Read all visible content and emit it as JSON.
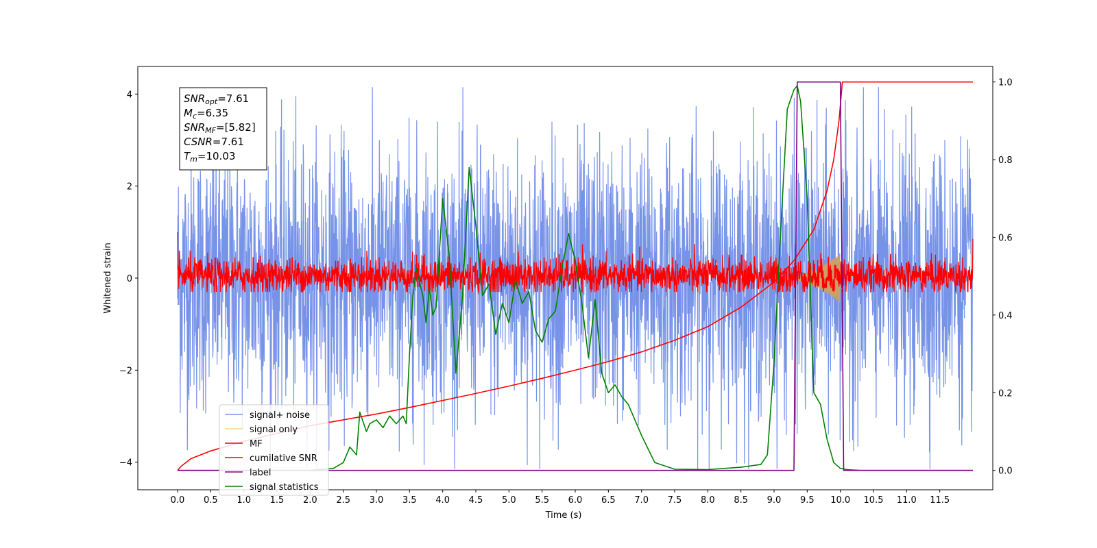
{
  "chart_data": {
    "type": "line",
    "title": "",
    "xlabel": "Time (s)",
    "ylabel": "Whitened strain",
    "y2label": "",
    "xlim": [
      -0.6,
      12.3
    ],
    "ylim": [
      -4.6,
      4.6
    ],
    "y2lim": [
      -0.05,
      1.04
    ],
    "x_ticks": [
      "0.0",
      "0.5",
      "1.0",
      "1.5",
      "2.0",
      "2.5",
      "3.0",
      "3.5",
      "4.0",
      "4.5",
      "5.0",
      "5.5",
      "6.0",
      "6.5",
      "7.0",
      "7.5",
      "8.0",
      "8.5",
      "9.0",
      "9.5",
      "10.0",
      "10.5",
      "11.0",
      "11.5"
    ],
    "y_ticks": [
      "4",
      "2",
      "0",
      "−2",
      "−4"
    ],
    "y2_ticks": [
      "1.0",
      "0.8",
      "0.6",
      "0.4",
      "0.2",
      "0.0"
    ],
    "grid": false,
    "legend_position": "lower-left",
    "annotation": {
      "lines": [
        {
          "base": "SNR",
          "sub": "opt",
          "value": "=7.61"
        },
        {
          "base": "M",
          "sub": "c",
          "value": "=6.35"
        },
        {
          "base": "SNR",
          "sub": "MF",
          "value": "=[5.82]"
        },
        {
          "base": "CSNR",
          "sub": "",
          "value": "=7.61"
        },
        {
          "base": "T",
          "sub": "m",
          "value": "=10.03"
        }
      ]
    },
    "series": [
      {
        "name": "signal+ noise",
        "color": "#7793e8",
        "axis": "left",
        "style": "noise band",
        "x_range": [
          0.0,
          12.0
        ],
        "typical_range": [
          -1.5,
          1.5
        ],
        "max": 4.15,
        "min": -4.15
      },
      {
        "name": "signal only",
        "color": "#fdd58b",
        "axis": "left",
        "style": "chirp",
        "x_range": [
          9.0,
          10.0
        ],
        "max_amplitude": 0.55
      },
      {
        "name": "MF",
        "color": "#ff0000",
        "axis": "left",
        "style": "noise band",
        "x_range": [
          0.0,
          12.0
        ],
        "typical_range": [
          -0.25,
          0.45
        ],
        "max": 1.0,
        "min": -0.3
      },
      {
        "name": "cumilative SNR",
        "color": "#ff0000",
        "axis": "right",
        "x": [
          0.0,
          0.05,
          0.2,
          0.5,
          1.0,
          1.5,
          2.0,
          2.5,
          3.0,
          3.5,
          4.0,
          4.5,
          5.0,
          5.5,
          6.0,
          6.5,
          7.0,
          7.5,
          8.0,
          8.5,
          9.0,
          9.3,
          9.6,
          9.8,
          9.9,
          9.98,
          10.03,
          11.5,
          12.0
        ],
        "y": [
          0.0,
          0.01,
          0.03,
          0.05,
          0.075,
          0.095,
          0.115,
          0.13,
          0.145,
          0.162,
          0.18,
          0.198,
          0.217,
          0.237,
          0.258,
          0.28,
          0.305,
          0.335,
          0.37,
          0.42,
          0.485,
          0.54,
          0.62,
          0.72,
          0.8,
          0.9,
          1.0,
          1.0,
          1.0
        ]
      },
      {
        "name": "label",
        "color": "#800080",
        "axis": "right",
        "x": [
          0.0,
          9.3,
          9.35,
          10.0,
          10.05,
          12.0
        ],
        "y": [
          0.0,
          0.0,
          1.0,
          1.0,
          0.0,
          0.0
        ]
      },
      {
        "name": "signal statistics",
        "color": "#008000",
        "axis": "right",
        "x": [
          0.0,
          1.0,
          2.0,
          2.35,
          2.5,
          2.6,
          2.7,
          2.75,
          2.85,
          2.9,
          3.0,
          3.1,
          3.2,
          3.3,
          3.4,
          3.45,
          3.5,
          3.55,
          3.6,
          3.7,
          3.75,
          3.8,
          3.85,
          3.9,
          4.0,
          4.1,
          4.2,
          4.3,
          4.4,
          4.5,
          4.6,
          4.7,
          4.8,
          4.9,
          5.0,
          5.1,
          5.2,
          5.3,
          5.4,
          5.5,
          5.6,
          5.7,
          5.8,
          5.9,
          6.0,
          6.1,
          6.2,
          6.3,
          6.4,
          6.5,
          6.6,
          6.7,
          6.8,
          6.9,
          7.0,
          7.2,
          7.5,
          8.0,
          8.5,
          8.8,
          8.9,
          9.0,
          9.1,
          9.2,
          9.3,
          9.35,
          9.4,
          9.5,
          9.6,
          9.7,
          9.8,
          9.9,
          10.0,
          10.1,
          10.3,
          12.0
        ],
        "y": [
          0.0,
          0.0,
          0.0,
          0.005,
          0.02,
          0.06,
          0.04,
          0.15,
          0.1,
          0.12,
          0.13,
          0.11,
          0.14,
          0.12,
          0.14,
          0.12,
          0.3,
          0.45,
          0.52,
          0.45,
          0.38,
          0.47,
          0.4,
          0.42,
          0.7,
          0.55,
          0.25,
          0.45,
          0.78,
          0.63,
          0.45,
          0.48,
          0.35,
          0.43,
          0.38,
          0.49,
          0.43,
          0.46,
          0.36,
          0.33,
          0.39,
          0.41,
          0.52,
          0.61,
          0.54,
          0.43,
          0.29,
          0.44,
          0.25,
          0.2,
          0.22,
          0.19,
          0.17,
          0.13,
          0.09,
          0.02,
          0.003,
          0.002,
          0.008,
          0.015,
          0.04,
          0.28,
          0.62,
          0.93,
          0.98,
          0.99,
          0.95,
          0.7,
          0.2,
          0.17,
          0.08,
          0.02,
          0.005,
          0.002,
          0.0,
          0.0
        ]
      }
    ]
  }
}
